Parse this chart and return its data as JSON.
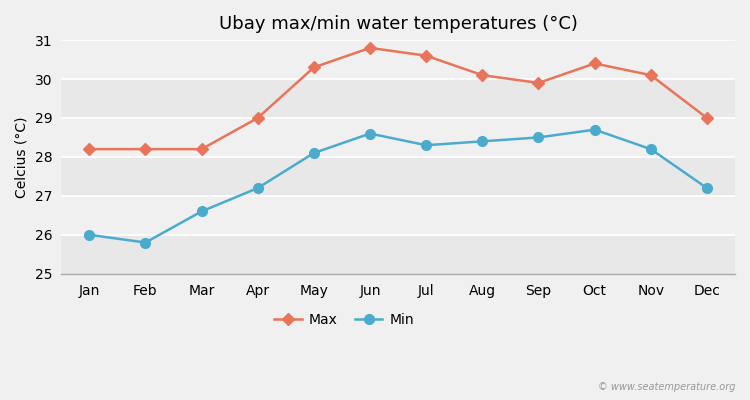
{
  "title": "Ubay max/min water temperatures (°C)",
  "ylabel": "Celcius (°C)",
  "months": [
    "Jan",
    "Feb",
    "Mar",
    "Apr",
    "May",
    "Jun",
    "Jul",
    "Aug",
    "Sep",
    "Oct",
    "Nov",
    "Dec"
  ],
  "max_temps": [
    28.2,
    28.2,
    28.2,
    29.0,
    30.3,
    30.8,
    30.6,
    30.1,
    29.9,
    30.4,
    30.1,
    29.0
  ],
  "min_temps": [
    26.0,
    25.8,
    26.6,
    27.2,
    28.1,
    28.6,
    28.3,
    28.4,
    28.5,
    28.7,
    28.2,
    27.2
  ],
  "max_color": "#e8745a",
  "min_color": "#4aabcc",
  "bg_color": "#f0f0f0",
  "band_colors": [
    "#e8e8e8",
    "#f0f0f0"
  ],
  "ylim": [
    25,
    31
  ],
  "yticks": [
    25,
    26,
    27,
    28,
    29,
    30,
    31
  ],
  "grid_color": "#ffffff",
  "max_marker": "D",
  "min_marker": "o",
  "max_marker_size": 6,
  "min_marker_size": 7,
  "line_width": 1.8,
  "title_fontsize": 13,
  "label_fontsize": 10,
  "tick_fontsize": 10,
  "watermark": "© www.seatemperature.org"
}
